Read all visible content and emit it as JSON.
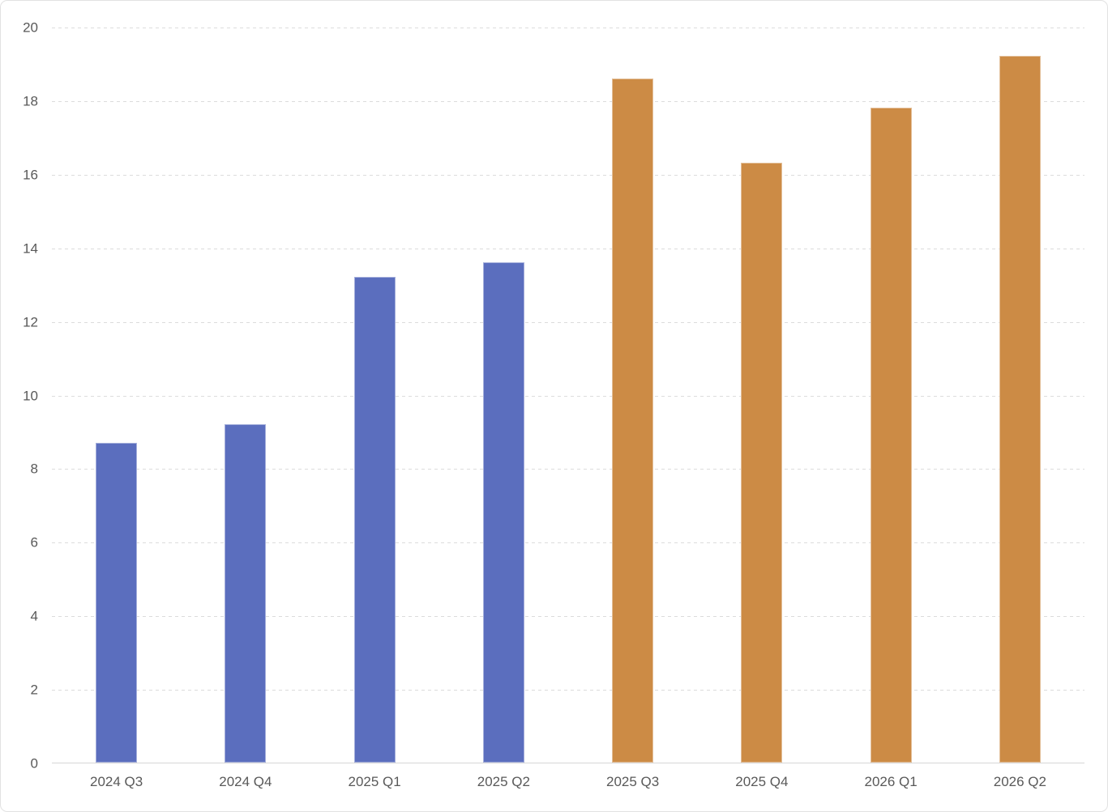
{
  "chart_data": {
    "type": "bar",
    "title": "",
    "xlabel": "",
    "ylabel": "",
    "categories": [
      "2024 Q3",
      "2024 Q4",
      "2025 Q1",
      "2025 Q2",
      "2025 Q3",
      "2025 Q4",
      "2026 Q1",
      "2026 Q2"
    ],
    "values": [
      8.7,
      9.2,
      13.2,
      13.6,
      18.6,
      16.3,
      17.8,
      19.2
    ],
    "bar_colors": [
      "#5B6EBE",
      "#5B6EBE",
      "#5B6EBE",
      "#5B6EBE",
      "#CC8B45",
      "#CC8B45",
      "#CC8B45",
      "#CC8B45"
    ],
    "ylim": [
      0,
      20
    ],
    "ytick_step": 2,
    "y_tick_labels": [
      "0",
      "2",
      "4",
      "6",
      "8",
      "10",
      "12",
      "14",
      "16",
      "18",
      "20"
    ],
    "grid": "horizontal-dashed",
    "gridline_color": "#DCDCDC",
    "axis_line_color": "#D6D6D6",
    "tick_label_color": "#595959",
    "legend": "none"
  }
}
